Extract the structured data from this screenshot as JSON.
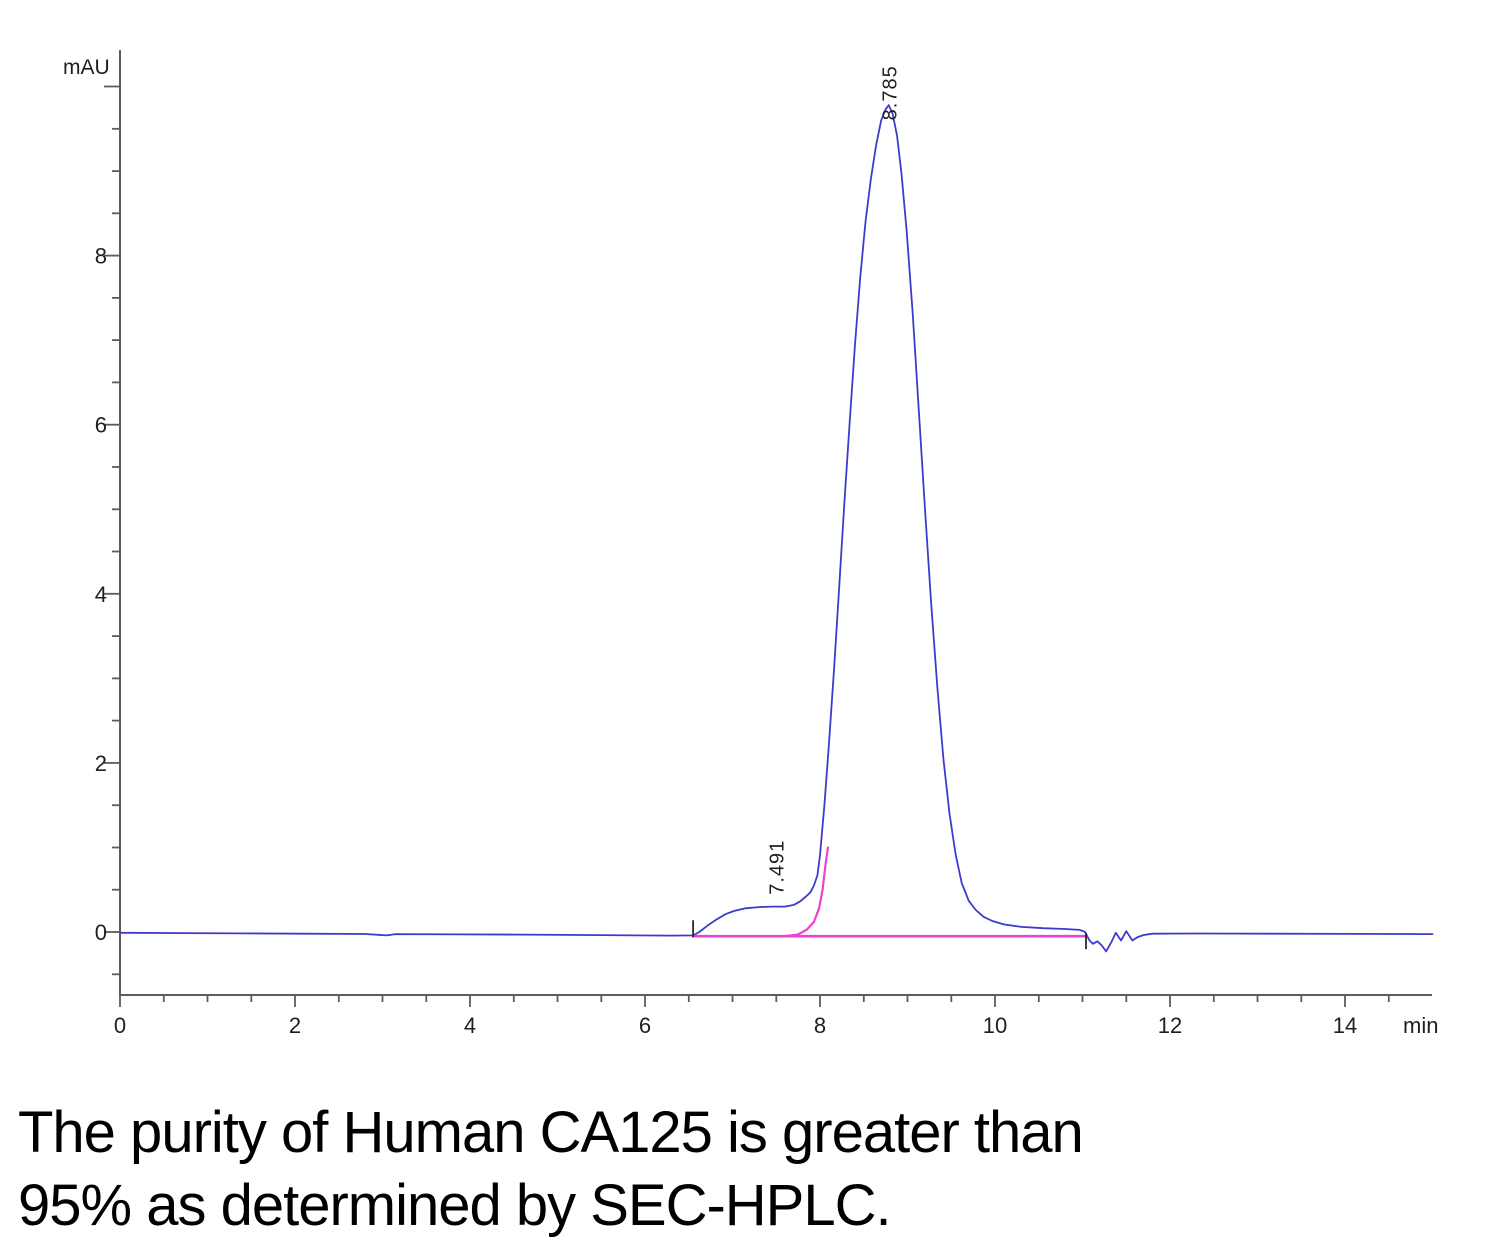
{
  "figure": {
    "caption_line1": "The purity of Human CA125 is greater than",
    "caption_line2": "95% as determined by SEC-HPLC."
  },
  "chart_data": {
    "type": "line",
    "title": "",
    "xlabel": "min",
    "ylabel": "mAU",
    "xlim": [
      0,
      15
    ],
    "ylim": [
      -0.74,
      10.43
    ],
    "grid": false,
    "legend": "none",
    "x_major_tick_step": 2,
    "x_minor_tick_step": 0.5,
    "y_major_tick_step": 2,
    "y_minor_tick_step": 0.5,
    "x_tick_labels": [
      "0",
      "2",
      "4",
      "6",
      "8",
      "10",
      "12",
      "14"
    ],
    "y_tick_labels": [
      "0",
      "2",
      "4",
      "6",
      "8"
    ],
    "colors": {
      "trace": "#3c3ccc",
      "baseline": "#e944cf",
      "axis": "#5c5c5c",
      "text": "#1f1f1f"
    },
    "peaks": [
      {
        "label": "7.491",
        "retention_time_min": 7.491,
        "apex_mAU": 0.3,
        "label_bottom_mAU": 0.44
      },
      {
        "label": "8.785",
        "retention_time_min": 8.785,
        "apex_mAU": 9.78,
        "label_bottom_mAU": 9.6
      }
    ],
    "integration_marks": [
      {
        "time_min": 6.55,
        "direction": "up"
      },
      {
        "time_min": 11.04,
        "direction": "down"
      }
    ],
    "series": [
      {
        "name": "uv-absorbance-trace",
        "color": "#3c3ccc",
        "width": 1.8,
        "points": [
          [
            0,
            -0.01
          ],
          [
            0.7,
            -0.013
          ],
          [
            1.4,
            -0.016
          ],
          [
            2.1,
            -0.02
          ],
          [
            2.8,
            -0.024
          ],
          [
            3.05,
            -0.04
          ],
          [
            3.15,
            -0.025
          ],
          [
            3.9,
            -0.028
          ],
          [
            4.6,
            -0.031
          ],
          [
            5.3,
            -0.035
          ],
          [
            5.9,
            -0.04
          ],
          [
            6.3,
            -0.043
          ],
          [
            6.55,
            -0.04
          ],
          [
            6.62,
            0.0
          ],
          [
            6.72,
            0.08
          ],
          [
            6.82,
            0.15
          ],
          [
            6.92,
            0.21
          ],
          [
            7.02,
            0.25
          ],
          [
            7.15,
            0.28
          ],
          [
            7.3,
            0.295
          ],
          [
            7.45,
            0.3
          ],
          [
            7.6,
            0.3
          ],
          [
            7.7,
            0.32
          ],
          [
            7.77,
            0.36
          ],
          [
            7.84,
            0.42
          ],
          [
            7.89,
            0.47
          ],
          [
            7.93,
            0.55
          ],
          [
            7.97,
            0.67
          ],
          [
            8.0,
            0.91
          ],
          [
            8.05,
            1.5
          ],
          [
            8.1,
            2.2
          ],
          [
            8.16,
            3.1
          ],
          [
            8.22,
            4.1
          ],
          [
            8.28,
            5.1
          ],
          [
            8.34,
            6.05
          ],
          [
            8.4,
            6.95
          ],
          [
            8.46,
            7.75
          ],
          [
            8.52,
            8.4
          ],
          [
            8.58,
            8.9
          ],
          [
            8.64,
            9.3
          ],
          [
            8.7,
            9.6
          ],
          [
            8.75,
            9.73
          ],
          [
            8.785,
            9.78
          ],
          [
            8.83,
            9.68
          ],
          [
            8.88,
            9.42
          ],
          [
            8.93,
            8.98
          ],
          [
            8.99,
            8.3
          ],
          [
            9.06,
            7.3
          ],
          [
            9.13,
            6.15
          ],
          [
            9.2,
            5.0
          ],
          [
            9.27,
            3.9
          ],
          [
            9.34,
            2.9
          ],
          [
            9.41,
            2.05
          ],
          [
            9.48,
            1.4
          ],
          [
            9.55,
            0.92
          ],
          [
            9.62,
            0.58
          ],
          [
            9.7,
            0.37
          ],
          [
            9.78,
            0.26
          ],
          [
            9.87,
            0.18
          ],
          [
            9.97,
            0.13
          ],
          [
            10.1,
            0.09
          ],
          [
            10.3,
            0.06
          ],
          [
            10.55,
            0.045
          ],
          [
            10.8,
            0.035
          ],
          [
            10.97,
            0.025
          ],
          [
            11.03,
            0.0
          ],
          [
            11.08,
            -0.1
          ],
          [
            11.12,
            -0.14
          ],
          [
            11.17,
            -0.11
          ],
          [
            11.22,
            -0.16
          ],
          [
            11.27,
            -0.23
          ],
          [
            11.33,
            -0.12
          ],
          [
            11.38,
            -0.01
          ],
          [
            11.44,
            -0.1
          ],
          [
            11.5,
            0.01
          ],
          [
            11.57,
            -0.1
          ],
          [
            11.63,
            -0.06
          ],
          [
            11.7,
            -0.035
          ],
          [
            11.8,
            -0.02
          ],
          [
            12.3,
            -0.018
          ],
          [
            13.2,
            -0.02
          ],
          [
            14.1,
            -0.022
          ],
          [
            15,
            -0.025
          ]
        ]
      },
      {
        "name": "integration-baseline",
        "color": "#e944cf",
        "width": 2.6,
        "points": [
          [
            6.55,
            -0.05
          ],
          [
            11.04,
            -0.05
          ]
        ]
      },
      {
        "name": "peak-split-skim-line",
        "color": "#e944cf",
        "width": 2.2,
        "points": [
          [
            7.6,
            -0.05
          ],
          [
            7.75,
            -0.03
          ],
          [
            7.85,
            0.03
          ],
          [
            7.93,
            0.12
          ],
          [
            7.99,
            0.28
          ],
          [
            8.03,
            0.5
          ],
          [
            8.06,
            0.78
          ],
          [
            8.09,
            1.0
          ]
        ]
      }
    ]
  }
}
